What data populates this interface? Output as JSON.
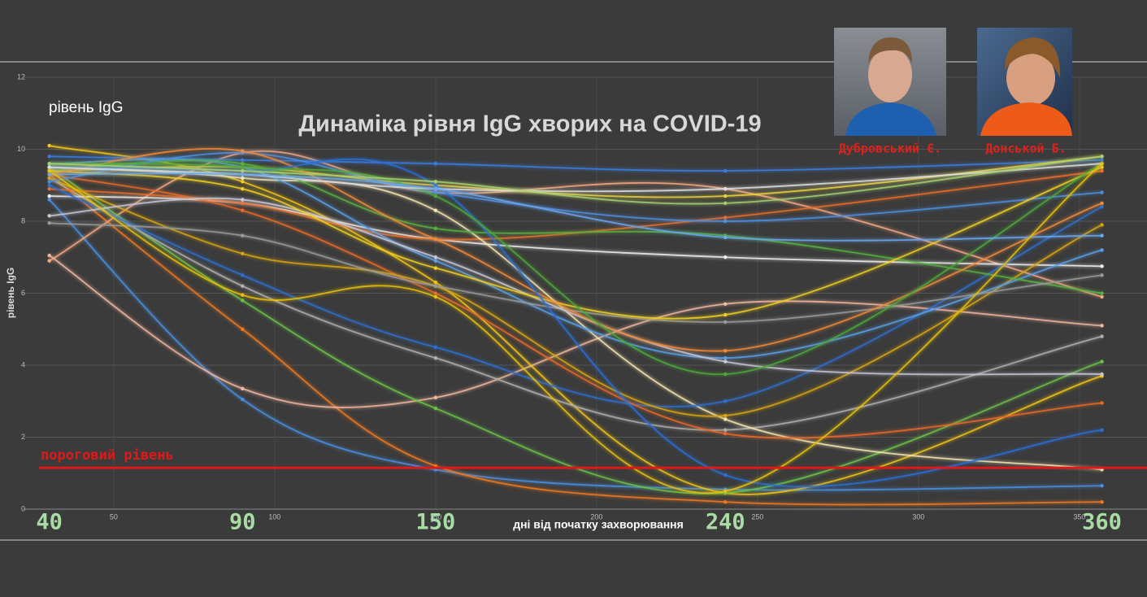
{
  "chart_data": {
    "type": "line",
    "title": "Динаміка рівня IgG хворих на COVID-19",
    "subtitle": "рівень IgG",
    "y_label": "рівень IgG",
    "x_label": "дні від початку захворювання",
    "x": [
      30,
      90,
      150,
      240,
      357
    ],
    "period_labels": [
      "40",
      "90",
      "150",
      "240",
      "360"
    ],
    "xlim": [
      22,
      371
    ],
    "xticks": [
      50,
      100,
      150,
      200,
      250,
      300,
      350
    ],
    "ylim": [
      0,
      12
    ],
    "yticks": [
      0,
      2,
      4,
      6,
      8,
      10,
      12
    ],
    "grid": true,
    "threshold": 1.15,
    "threshold_label": "пороговий рівень",
    "threshold_color": "#e01818",
    "authors": [
      "Дубровський Є.",
      "Донськой Б."
    ],
    "series": [
      {
        "color": "#4a90e2",
        "values": [
          8.6,
          3.05,
          1.1,
          0.55,
          0.65
        ]
      },
      {
        "color": "#f07a20",
        "values": [
          9.3,
          5.0,
          1.2,
          0.2,
          0.2
        ]
      },
      {
        "color": "#f4b7a0",
        "values": [
          7.05,
          3.35,
          3.1,
          5.7,
          5.1
        ]
      },
      {
        "color": "#f4a882",
        "values": [
          6.9,
          9.9,
          8.8,
          8.9,
          5.9
        ]
      },
      {
        "color": "#f5c518",
        "values": [
          10.1,
          9.1,
          6.3,
          0.45,
          3.7
        ]
      },
      {
        "color": "#6cc24a",
        "values": [
          9.5,
          5.8,
          2.8,
          0.45,
          4.1
        ]
      },
      {
        "color": "#b0b0b0",
        "values": [
          9.2,
          6.2,
          4.2,
          2.2,
          4.8
        ]
      },
      {
        "color": "#f0f0f0",
        "values": [
          8.7,
          8.5,
          7.5,
          7.0,
          6.75
        ]
      },
      {
        "color": "#3b7de0",
        "values": [
          9.8,
          9.7,
          9.6,
          9.4,
          9.7
        ]
      },
      {
        "color": "#e8d040",
        "values": [
          9.4,
          9.5,
          9.0,
          8.7,
          9.8
        ]
      },
      {
        "color": "#e8702a",
        "values": [
          8.9,
          8.5,
          7.5,
          8.1,
          9.4
        ]
      },
      {
        "color": "#f5e6b0",
        "values": [
          9.5,
          9.2,
          8.3,
          2.5,
          1.1
        ]
      },
      {
        "color": "#2f6fd0",
        "values": [
          9.0,
          6.5,
          4.5,
          3.0,
          8.4
        ]
      },
      {
        "color": "#e86a2a",
        "values": [
          9.3,
          8.3,
          6.0,
          2.1,
          2.95
        ]
      },
      {
        "color": "#d9a514",
        "values": [
          9.2,
          7.1,
          6.2,
          2.6,
          7.9
        ]
      },
      {
        "color": "#5aa0e8",
        "values": [
          9.6,
          9.5,
          6.9,
          4.2,
          7.2
        ]
      },
      {
        "color": "#58b040",
        "values": [
          9.4,
          9.6,
          7.8,
          7.6,
          6.0
        ]
      },
      {
        "color": "#9a9a9a",
        "values": [
          7.95,
          7.6,
          6.2,
          5.2,
          6.5
        ]
      },
      {
        "color": "#4f8fe0",
        "values": [
          9.1,
          9.9,
          8.8,
          8.0,
          8.8
        ]
      },
      {
        "color": "#c8c8d8",
        "values": [
          8.15,
          8.6,
          7.0,
          4.1,
          3.75
        ]
      },
      {
        "color": "#f2d020",
        "values": [
          9.4,
          8.9,
          6.7,
          5.4,
          9.5
        ]
      },
      {
        "color": "#f08a3a",
        "values": [
          9.3,
          9.95,
          7.5,
          4.4,
          8.5
        ]
      },
      {
        "color": "#2a70d8",
        "values": [
          9.5,
          9.4,
          9.0,
          0.95,
          2.2
        ]
      },
      {
        "color": "#4ea83a",
        "values": [
          9.6,
          9.5,
          8.7,
          3.75,
          9.6
        ]
      },
      {
        "color": "#e0e0e0",
        "values": [
          9.5,
          9.3,
          8.9,
          8.9,
          9.6
        ]
      },
      {
        "color": "#6aa8f0",
        "values": [
          9.3,
          9.3,
          8.9,
          7.55,
          7.6
        ]
      },
      {
        "color": "#a8d070",
        "values": [
          9.6,
          9.4,
          9.1,
          8.5,
          9.8
        ]
      },
      {
        "color": "#e8c010",
        "values": [
          9.4,
          5.95,
          5.9,
          0.5,
          9.6
        ]
      }
    ]
  }
}
